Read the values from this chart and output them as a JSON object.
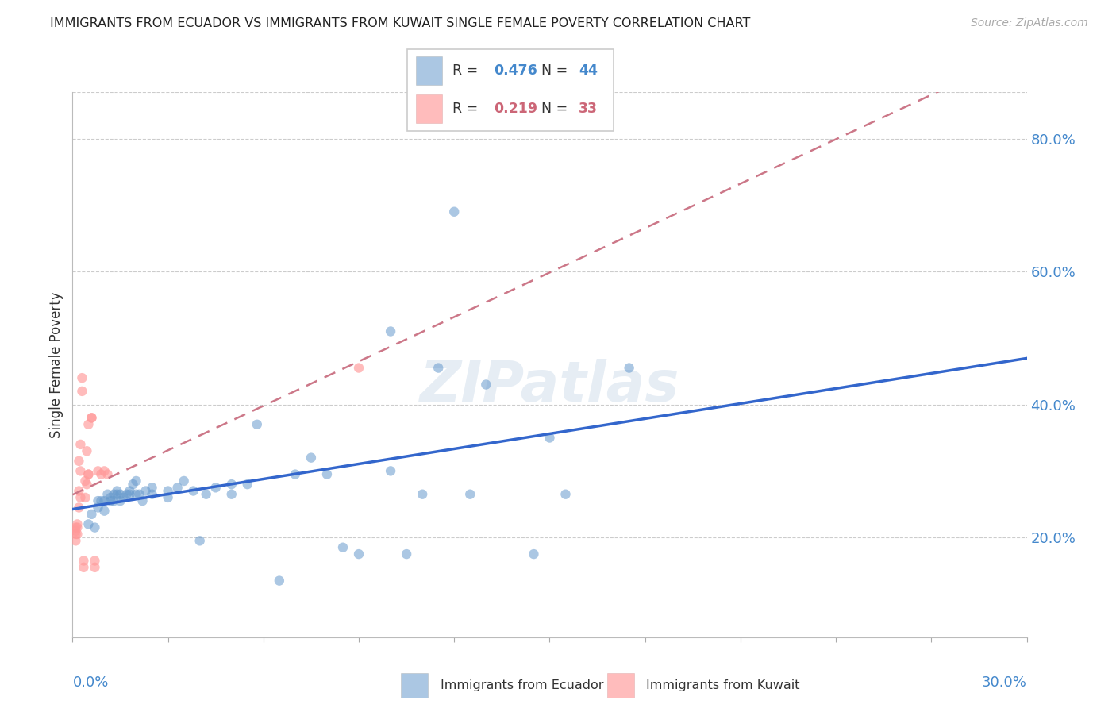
{
  "title": "IMMIGRANTS FROM ECUADOR VS IMMIGRANTS FROM KUWAIT SINGLE FEMALE POVERTY CORRELATION CHART",
  "source": "Source: ZipAtlas.com",
  "ylabel": "Single Female Poverty",
  "ylabel_right_ticks": [
    "20.0%",
    "40.0%",
    "60.0%",
    "80.0%"
  ],
  "ylabel_right_values": [
    0.2,
    0.4,
    0.6,
    0.8
  ],
  "xlim": [
    0.0,
    0.3
  ],
  "ylim": [
    0.05,
    0.87
  ],
  "ecuador_color": "#6699cc",
  "kuwait_color": "#ff9999",
  "ecuador_line_color": "#3366cc",
  "kuwait_line_color": "#cc7788",
  "watermark": "ZIPatlas",
  "ecuador_scatter": [
    [
      0.005,
      0.22
    ],
    [
      0.006,
      0.235
    ],
    [
      0.007,
      0.215
    ],
    [
      0.008,
      0.245
    ],
    [
      0.008,
      0.255
    ],
    [
      0.009,
      0.255
    ],
    [
      0.01,
      0.24
    ],
    [
      0.01,
      0.255
    ],
    [
      0.011,
      0.265
    ],
    [
      0.012,
      0.26
    ],
    [
      0.012,
      0.255
    ],
    [
      0.013,
      0.265
    ],
    [
      0.013,
      0.255
    ],
    [
      0.014,
      0.27
    ],
    [
      0.014,
      0.265
    ],
    [
      0.015,
      0.255
    ],
    [
      0.015,
      0.265
    ],
    [
      0.016,
      0.26
    ],
    [
      0.017,
      0.265
    ],
    [
      0.018,
      0.27
    ],
    [
      0.018,
      0.265
    ],
    [
      0.019,
      0.28
    ],
    [
      0.02,
      0.265
    ],
    [
      0.02,
      0.285
    ],
    [
      0.021,
      0.265
    ],
    [
      0.022,
      0.255
    ],
    [
      0.023,
      0.27
    ],
    [
      0.025,
      0.265
    ],
    [
      0.025,
      0.275
    ],
    [
      0.03,
      0.27
    ],
    [
      0.03,
      0.26
    ],
    [
      0.033,
      0.275
    ],
    [
      0.035,
      0.285
    ],
    [
      0.038,
      0.27
    ],
    [
      0.04,
      0.195
    ],
    [
      0.042,
      0.265
    ],
    [
      0.045,
      0.275
    ],
    [
      0.05,
      0.28
    ],
    [
      0.05,
      0.265
    ],
    [
      0.055,
      0.28
    ],
    [
      0.058,
      0.37
    ],
    [
      0.065,
      0.135
    ],
    [
      0.07,
      0.295
    ],
    [
      0.075,
      0.32
    ],
    [
      0.08,
      0.295
    ],
    [
      0.085,
      0.185
    ],
    [
      0.09,
      0.175
    ],
    [
      0.1,
      0.51
    ],
    [
      0.1,
      0.3
    ],
    [
      0.105,
      0.175
    ],
    [
      0.11,
      0.265
    ],
    [
      0.115,
      0.455
    ],
    [
      0.12,
      0.69
    ],
    [
      0.125,
      0.265
    ],
    [
      0.13,
      0.43
    ],
    [
      0.145,
      0.175
    ],
    [
      0.15,
      0.35
    ],
    [
      0.155,
      0.265
    ],
    [
      0.175,
      0.455
    ]
  ],
  "kuwait_scatter": [
    [
      0.001,
      0.195
    ],
    [
      0.001,
      0.205
    ],
    [
      0.001,
      0.21
    ],
    [
      0.001,
      0.215
    ],
    [
      0.0015,
      0.205
    ],
    [
      0.0015,
      0.215
    ],
    [
      0.0015,
      0.22
    ],
    [
      0.002,
      0.245
    ],
    [
      0.002,
      0.27
    ],
    [
      0.002,
      0.315
    ],
    [
      0.0025,
      0.26
    ],
    [
      0.0025,
      0.3
    ],
    [
      0.0025,
      0.34
    ],
    [
      0.003,
      0.42
    ],
    [
      0.003,
      0.44
    ],
    [
      0.0035,
      0.155
    ],
    [
      0.0035,
      0.165
    ],
    [
      0.004,
      0.26
    ],
    [
      0.004,
      0.285
    ],
    [
      0.0045,
      0.28
    ],
    [
      0.0045,
      0.33
    ],
    [
      0.005,
      0.295
    ],
    [
      0.005,
      0.295
    ],
    [
      0.005,
      0.37
    ],
    [
      0.006,
      0.38
    ],
    [
      0.006,
      0.38
    ],
    [
      0.007,
      0.155
    ],
    [
      0.007,
      0.165
    ],
    [
      0.008,
      0.3
    ],
    [
      0.009,
      0.295
    ],
    [
      0.01,
      0.3
    ],
    [
      0.011,
      0.295
    ],
    [
      0.09,
      0.455
    ]
  ]
}
